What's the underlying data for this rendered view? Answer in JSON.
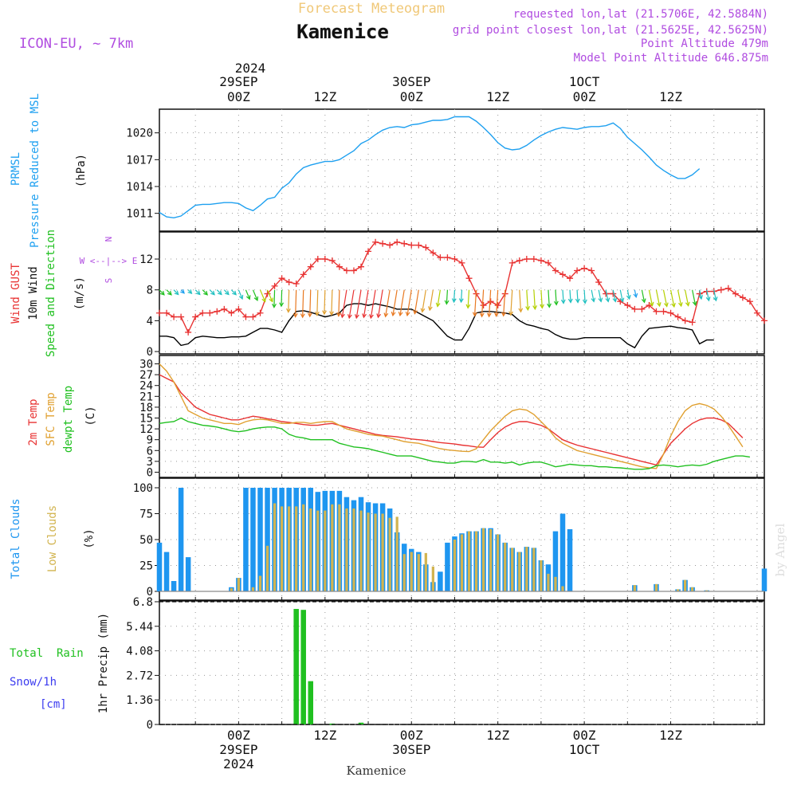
{
  "header": {
    "title": "Kamenice",
    "subtitle": "Forecast Meteogram",
    "model": "ICON-EU, ~ 7km",
    "requested": "requested lon,lat (21.5706E, 42.5884N)",
    "grid_point": "grid point closest lon,lat (21.5625E, 42.5625N)",
    "point_altitude": "Point Altitude 479m",
    "model_altitude": "Model Point Altitude 646.875m"
  },
  "footer": {
    "location": "Kamenice",
    "watermark": "by Angel"
  },
  "time_axis": {
    "top_year": "2024",
    "top_labels": [
      {
        "hour": 0,
        "day": "29SEP",
        "tick": "00Z"
      },
      {
        "hour": 12,
        "day": "",
        "tick": "12Z"
      },
      {
        "hour": 24,
        "day": "30SEP",
        "tick": "00Z"
      },
      {
        "hour": 36,
        "day": "",
        "tick": "12Z"
      },
      {
        "hour": 48,
        "day": "1OCT",
        "tick": "00Z"
      },
      {
        "hour": 60,
        "day": "",
        "tick": "12Z"
      }
    ],
    "bottom_labels": [
      {
        "hour": 0,
        "tick": "00Z",
        "day": "29SEP",
        "year": "2024"
      },
      {
        "hour": 12,
        "tick": "12Z",
        "day": "",
        "year": ""
      },
      {
        "hour": 24,
        "tick": "00Z",
        "day": "30SEP",
        "year": ""
      },
      {
        "hour": 36,
        "tick": "12Z",
        "day": "",
        "year": ""
      },
      {
        "hour": 48,
        "tick": "00Z",
        "day": "1OCT",
        "year": ""
      },
      {
        "hour": 60,
        "tick": "12Z",
        "day": "",
        "year": ""
      }
    ]
  },
  "panel_labels": {
    "pressure": [
      "PRMSL",
      "Pressure Reduced to MSL",
      "(hPa)"
    ],
    "wind": [
      "Wind GUST",
      "10m Wind",
      "Speed and Direction",
      "(m/s)"
    ],
    "compass": [
      "N",
      "W <--|--> E",
      "S"
    ],
    "temp": [
      "2m Temp",
      "SFC Temp",
      "dewpt Temp",
      "(C)"
    ],
    "clouds": [
      "Total Clouds",
      "Low Clouds",
      "(%)"
    ],
    "precip": [
      "Total  Rain",
      "Snow/1h",
      "[cm]",
      "1hr Precip (mm)"
    ]
  },
  "colors": {
    "pressure": "#1ea0f0",
    "gust": "#e83232",
    "wind": "#000000",
    "temp": "#e83232",
    "sfc": "#e0a030",
    "dew": "#20c020",
    "total_cloud": "#1e96f0",
    "low_cloud": "#d2b450",
    "rain": "#20c020",
    "snow": "#3c3cf0",
    "title_purple": "#b04ce0",
    "subtitle": "#f0c878"
  },
  "chart_data": [
    {
      "type": "line",
      "name": "pressure",
      "ylabel": "(hPa)",
      "x_start": -11,
      "x_step": 1,
      "ylim": [
        1009.9,
        1022.2
      ],
      "yticks": [
        1011,
        1014,
        1017,
        1020
      ],
      "series": [
        {
          "name": "PRMSL",
          "values": [
            1011.1,
            1010.6,
            1010.5,
            1010.7,
            1011.3,
            1011.9,
            1012.0,
            1012.0,
            1012.1,
            1012.2,
            1012.2,
            1012.1,
            1011.6,
            1011.3,
            1011.9,
            1012.6,
            1012.8,
            1013.8,
            1014.4,
            1015.4,
            1016.1,
            1016.4,
            1016.6,
            1016.8,
            1016.8,
            1017.0,
            1017.5,
            1018.0,
            1018.8,
            1019.2,
            1019.8,
            1020.3,
            1020.6,
            1020.7,
            1020.6,
            1020.9,
            1021.0,
            1021.2,
            1021.4,
            1021.4,
            1021.5,
            1021.8,
            1021.8,
            1021.8,
            1021.3,
            1020.6,
            1019.8,
            1018.9,
            1018.3,
            1018.1,
            1018.2,
            1018.6,
            1019.2,
            1019.7,
            1020.1,
            1020.4,
            1020.6,
            1020.5,
            1020.4,
            1020.6,
            1020.7,
            1020.7,
            1020.8,
            1021.1,
            1020.5,
            1019.5,
            1018.8,
            1018.1,
            1017.3,
            1016.4,
            1015.8,
            1015.3,
            1014.9,
            1014.9,
            1015.3,
            1016.0
          ]
        }
      ]
    },
    {
      "type": "line",
      "name": "wind",
      "ylabel": "(m/s)",
      "x_start": -11,
      "x_step": 1,
      "ylim": [
        -0.3,
        15
      ],
      "yticks": [
        0,
        4,
        8,
        12
      ],
      "series": [
        {
          "name": "Wind GUST",
          "values": [
            5.0,
            5.0,
            4.5,
            4.5,
            2.5,
            4.5,
            5.0,
            5.0,
            5.2,
            5.5,
            5.0,
            5.5,
            4.5,
            4.5,
            5.0,
            7.5,
            8.5,
            9.5,
            9.0,
            8.8,
            10.0,
            11.0,
            12.0,
            12.0,
            11.8,
            11.0,
            10.5,
            10.5,
            11.0,
            13.0,
            14.2,
            14.0,
            13.8,
            14.2,
            14.0,
            13.8,
            13.8,
            13.5,
            12.8,
            12.2,
            12.2,
            12.0,
            11.5,
            9.5,
            7.5,
            6.0,
            6.5,
            6.0,
            7.5,
            11.5,
            11.8,
            12.0,
            12.0,
            11.8,
            11.5,
            10.5,
            10.0,
            9.5,
            10.5,
            10.8,
            10.5,
            9.0,
            7.5,
            7.5,
            6.5,
            6.0,
            5.5,
            5.5,
            6.0,
            5.2,
            5.2,
            5.0,
            4.5,
            4.0,
            3.8,
            7.5,
            7.8,
            7.8,
            8.0,
            8.2,
            7.5,
            7.0,
            6.5,
            5.0,
            4.0
          ]
        },
        {
          "name": "10m Wind",
          "values": [
            2.0,
            2.0,
            1.8,
            0.8,
            1.0,
            1.8,
            2.0,
            1.9,
            1.8,
            1.8,
            1.9,
            1.9,
            2.0,
            2.5,
            3.0,
            3.0,
            2.8,
            2.5,
            4.0,
            5.2,
            5.3,
            5.1,
            4.8,
            4.5,
            4.7,
            5.0,
            6.0,
            6.2,
            6.2,
            6.0,
            6.2,
            6.0,
            5.8,
            5.5,
            5.5,
            5.5,
            5.0,
            4.5,
            4.0,
            3.0,
            2.0,
            1.5,
            1.5,
            3.0,
            5.0,
            5.2,
            5.2,
            5.1,
            5.0,
            4.8,
            4.0,
            3.5,
            3.3,
            3.0,
            2.8,
            2.2,
            1.8,
            1.6,
            1.6,
            1.8,
            1.8,
            1.8,
            1.8,
            1.8,
            1.8,
            1.0,
            0.5,
            2.0,
            3.0,
            3.1,
            3.2,
            3.3,
            3.1,
            3.0,
            2.8,
            1.0,
            1.5,
            1.5
          ]
        }
      ]
    },
    {
      "type": "line",
      "name": "temperature",
      "ylabel": "(C)",
      "x_start": -11,
      "x_step": 1,
      "ylim": [
        -1,
        31
      ],
      "yticks": [
        0,
        3,
        6,
        9,
        12,
        15,
        18,
        21,
        24,
        27,
        30
      ],
      "series": [
        {
          "name": "2m Temp",
          "values": [
            27,
            26,
            25,
            22,
            20,
            18,
            17,
            16,
            15.5,
            15,
            14.5,
            14.5,
            15,
            15.5,
            15.2,
            14.8,
            14.5,
            14,
            13.8,
            13.5,
            13.2,
            13,
            13,
            13.3,
            13.5,
            13,
            12.5,
            12,
            11.5,
            11,
            10.5,
            10.2,
            10,
            9.8,
            9.5,
            9.2,
            9,
            8.8,
            8.5,
            8.2,
            8,
            7.8,
            7.5,
            7.3,
            7,
            6.9,
            9,
            11,
            12.5,
            13.5,
            14,
            14,
            13.5,
            13,
            12,
            10.5,
            9,
            8.2,
            7.5,
            7,
            6.5,
            6,
            5.5,
            5,
            4.5,
            4,
            3.5,
            3,
            2.5,
            2,
            5,
            8,
            10,
            12,
            13.5,
            14.5,
            15,
            15,
            14.5,
            13.5,
            11.5,
            9.5
          ]
        },
        {
          "name": "SFC Temp",
          "values": [
            30,
            28,
            25,
            21,
            17,
            16,
            15,
            14.5,
            14,
            13.5,
            13.5,
            13.2,
            14,
            14.5,
            14.7,
            14.5,
            14,
            13.5,
            13.5,
            13.8,
            13.8,
            13.5,
            13.8,
            14,
            14,
            13,
            12,
            11.5,
            11,
            10.5,
            10.2,
            10,
            9.5,
            9,
            8.5,
            8.2,
            8,
            7.5,
            7,
            6.5,
            6.2,
            6,
            5.8,
            5.7,
            6.5,
            9,
            11.5,
            13.5,
            15.5,
            17,
            17.5,
            17.2,
            16,
            14,
            12,
            9.5,
            8,
            7,
            6,
            5.5,
            5,
            4.5,
            4,
            3.5,
            3,
            2.5,
            2,
            1.5,
            1.2,
            1,
            5,
            10,
            14,
            17,
            18.5,
            19,
            18.5,
            17.5,
            15.5,
            13,
            10,
            7
          ]
        },
        {
          "name": "dewpt Temp",
          "values": [
            13.5,
            13.8,
            14,
            15,
            14,
            13.5,
            13,
            12.8,
            12.5,
            12,
            11.5,
            11.2,
            11.5,
            12,
            12.3,
            12.5,
            12.5,
            12,
            10.5,
            9.8,
            9.5,
            9,
            9,
            9,
            9,
            8,
            7.5,
            7,
            6.8,
            6.5,
            6,
            5.5,
            5,
            4.5,
            4.5,
            4.5,
            4,
            3.5,
            3,
            2.8,
            2.5,
            2.5,
            3,
            3,
            2.8,
            3.5,
            2.8,
            2.8,
            2.5,
            2.8,
            2,
            2.5,
            2.8,
            2.8,
            2.2,
            1.5,
            1.8,
            2.2,
            2,
            1.8,
            1.8,
            1.5,
            1.5,
            1.3,
            1.2,
            1,
            0.8,
            0.8,
            1,
            1.8,
            2,
            1.8,
            1.5,
            1.8,
            2,
            1.8,
            2.2,
            3,
            3.5,
            4,
            4.5,
            4.5,
            4.2
          ]
        }
      ]
    },
    {
      "type": "bar",
      "name": "clouds",
      "ylabel": "(%)",
      "x_start": -11,
      "x_step": 1,
      "ylim": [
        0,
        100
      ],
      "yticks": [
        0,
        25,
        50,
        75,
        100
      ],
      "series": [
        {
          "name": "Total Clouds",
          "values": [
            47,
            38,
            10,
            100,
            33,
            0,
            0,
            0,
            0,
            0,
            4,
            13,
            100,
            100,
            100,
            100,
            100,
            100,
            100,
            100,
            100,
            100,
            96,
            97,
            97,
            97,
            91,
            88,
            91,
            86,
            85,
            85,
            80,
            57,
            46,
            41,
            38,
            26,
            9,
            19,
            47,
            53,
            56,
            58,
            58,
            61,
            61,
            55,
            47,
            42,
            38,
            43,
            42,
            30,
            26,
            58,
            75,
            60,
            0,
            0,
            0,
            0,
            0,
            0,
            0,
            0,
            6,
            0,
            0,
            7,
            0,
            0,
            2,
            11,
            4,
            0,
            1,
            0,
            0,
            0,
            0,
            0,
            0,
            0,
            22
          ]
        },
        {
          "name": "Low Clouds",
          "values": [
            0,
            0,
            0,
            0,
            0,
            0,
            0,
            0,
            0,
            0,
            3,
            13,
            0,
            4,
            15,
            44,
            85,
            82,
            82,
            82,
            84,
            80,
            78,
            78,
            84,
            84,
            80,
            80,
            78,
            76,
            75,
            75,
            71,
            72,
            36,
            38,
            36,
            37,
            24,
            0,
            0,
            50,
            55,
            58,
            58,
            61,
            60,
            55,
            47,
            42,
            38,
            43,
            42,
            30,
            17,
            14,
            5,
            0,
            0,
            0,
            0,
            0,
            0,
            0,
            0,
            0,
            6,
            0,
            0,
            7,
            0,
            0,
            2,
            11,
            4,
            0,
            1,
            0,
            0,
            0,
            0,
            0,
            0,
            0,
            0
          ]
        }
      ]
    },
    {
      "type": "bar",
      "name": "precipitation",
      "ylabel": "1hr Precip (mm)",
      "x_start": -11,
      "x_step": 1,
      "ylim": [
        0,
        6.8
      ],
      "yticks": [
        0,
        1.36,
        2.72,
        4.08,
        5.44,
        6.8
      ],
      "series": [
        {
          "name": "Total Rain",
          "values": [
            0,
            0,
            0,
            0,
            0,
            0,
            0,
            0,
            0,
            0,
            0,
            0,
            0,
            0,
            0,
            0,
            0,
            0,
            0,
            6.4,
            6.35,
            2.4,
            0,
            0,
            0.05,
            0,
            0,
            0,
            0.1,
            0,
            0,
            0,
            0,
            0,
            0,
            0,
            0,
            0,
            0,
            0,
            0,
            0,
            0,
            0,
            0,
            0,
            0,
            0,
            0,
            0,
            0,
            0,
            0,
            0,
            0,
            0,
            0,
            0,
            0,
            0,
            0,
            0,
            0,
            0,
            0,
            0,
            0,
            0,
            0,
            0,
            0,
            0,
            0,
            0,
            0,
            0,
            0,
            0,
            0,
            0,
            0,
            0,
            0,
            0,
            0
          ]
        }
      ]
    }
  ]
}
